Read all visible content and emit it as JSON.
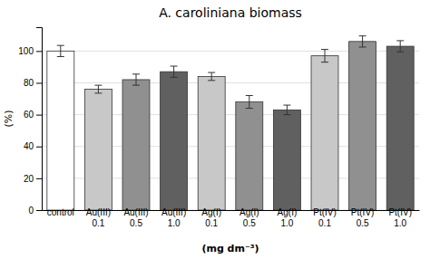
{
  "chart_data": {
    "type": "bar",
    "title": "A. caroliniana biomass",
    "x_label": "(mg dm⁻³)",
    "y_label": "(%)",
    "categories": [
      "control",
      "Au(III)\n0.1",
      "Au(III)\n0.5",
      "Au(III)\n1.0",
      "Ag(I)\n0.1",
      "Ag(I)\n0.5",
      "Ag(I)\n1.0",
      "Pt(IV)\n0.1",
      "Pt(IV)\n0.5",
      "Pt(IV)\n1.0"
    ],
    "values": [
      100.0,
      76.0,
      82.0,
      87.0,
      84.0,
      68.0,
      63.0,
      97.0,
      106.0,
      103.0
    ],
    "errors": [
      3.5,
      2.5,
      3.5,
      3.5,
      2.5,
      4.0,
      3.0,
      4.0,
      3.5,
      3.5
    ],
    "colors": [
      "#ffffff",
      "#c8c8c8",
      "#909090",
      "#606060",
      "#c8c8c8",
      "#909090",
      "#606060",
      "#c8c8c8",
      "#909090",
      "#606060"
    ],
    "ylim": [
      0,
      115
    ],
    "yticks": [
      0,
      20,
      40,
      60,
      80,
      100
    ],
    "grid": true
  }
}
